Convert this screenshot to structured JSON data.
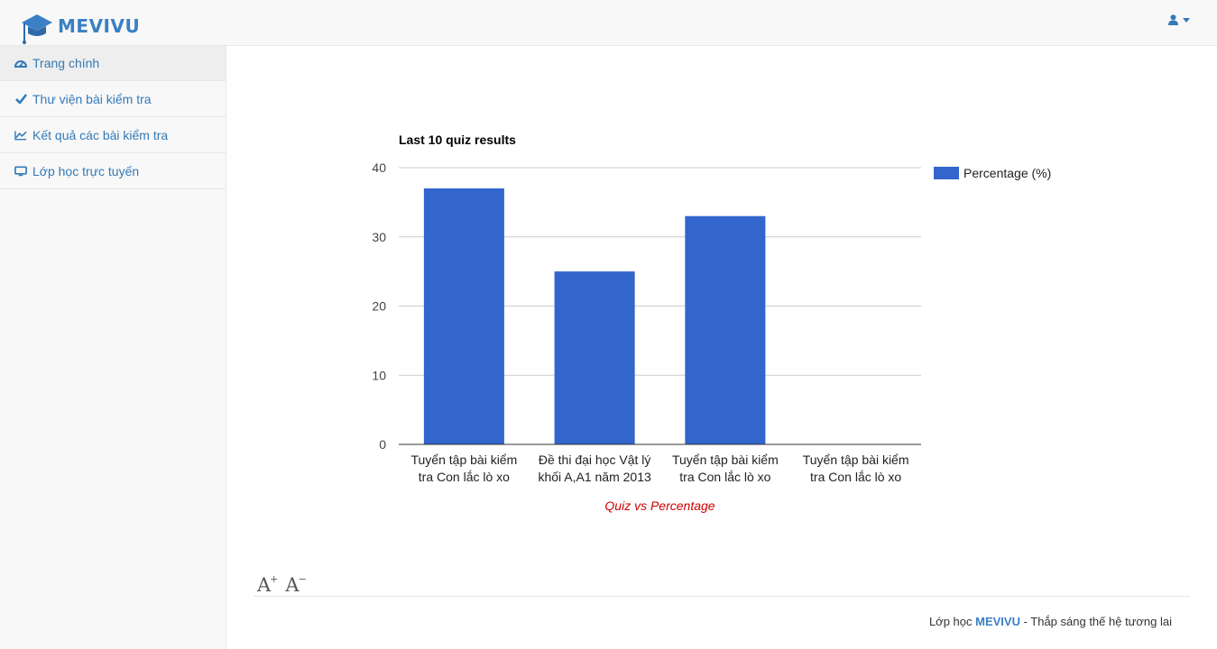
{
  "app": {
    "brand": "MEVIVU",
    "brand_color": "#3b7fc4"
  },
  "header": {
    "user_icon": "user-icon",
    "dropdown_icon": "caret-down-icon"
  },
  "sidebar": {
    "items": [
      {
        "label": "Trang chính",
        "icon": "dashboard-icon"
      },
      {
        "label": "Thư viện bài kiểm tra",
        "icon": "check-icon"
      },
      {
        "label": "Kết quả các bài kiểm tra",
        "icon": "line-chart-icon"
      },
      {
        "label": "Lớp học trực tuyến",
        "icon": "desktop-icon"
      }
    ]
  },
  "chart_data": {
    "type": "bar",
    "title": "Last 10 quiz results",
    "categories": [
      [
        "Tuyển tập bài kiểm",
        "tra Con lắc lò xo"
      ],
      [
        "Đề thi đại học Vật lý",
        "khối A,A1 năm 2013"
      ],
      [
        "Tuyển tập bài kiểm",
        "tra Con lắc lò xo"
      ],
      [
        "Tuyển tập bài kiểm",
        "tra Con lắc lò xo"
      ]
    ],
    "series": [
      {
        "name": "Percentage (%)",
        "values": [
          37,
          25,
          33,
          0
        ],
        "color": "#3366cc"
      }
    ],
    "xlabel": "Quiz vs Percentage",
    "xlabel_color": "#cc0000",
    "ylim": [
      0,
      40
    ],
    "yticks": [
      0,
      10,
      20,
      30,
      40
    ],
    "grid": true,
    "legend": "right"
  },
  "toolbar": {
    "increase_font": "A",
    "increase_sign": "+",
    "decrease_font": "A",
    "decrease_sign": "−"
  },
  "footer": {
    "prefix": "Lớp học ",
    "brand": "MEVIVU",
    "suffix": " - Thắp sáng thế hệ tương lai"
  }
}
